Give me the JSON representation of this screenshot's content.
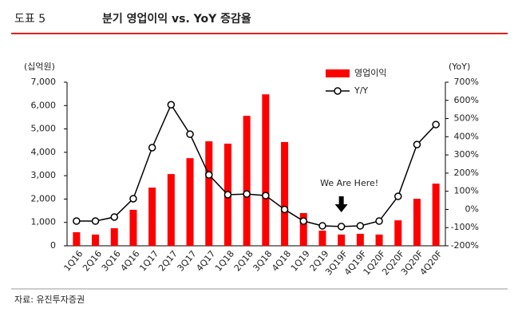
{
  "chart_data": {
    "type": "bar",
    "figure_number": "도표 5",
    "title": "분기 영업이익 vs. YoY 증감율",
    "source": "자료: 유진투자증권",
    "y_label": "(십억원)",
    "y2_label": "(YoY)",
    "categories": [
      "1Q16",
      "2Q16",
      "3Q16",
      "4Q16",
      "1Q17",
      "2Q17",
      "3Q17",
      "4Q17",
      "1Q18",
      "2Q18",
      "3Q18",
      "4Q18",
      "1Q19",
      "2Q19",
      "3Q19F",
      "4Q19F",
      "1Q20F",
      "2Q20F",
      "3Q20F",
      "4Q20F"
    ],
    "series": [
      {
        "name": "영업이익",
        "type": "bar",
        "color": "#ff0000",
        "values": [
          580,
          480,
          750,
          1540,
          2490,
          3070,
          3750,
          4470,
          4370,
          5560,
          6480,
          4440,
          1400,
          650,
          480,
          510,
          480,
          1090,
          2010,
          2660
        ]
      },
      {
        "name": "Y/Y",
        "type": "line",
        "axis": "y2",
        "color": "#000000",
        "values": [
          -64,
          -64,
          -42,
          59,
          340,
          576,
          414,
          190,
          81,
          85,
          76,
          0,
          -64,
          -90,
          -94,
          -90,
          -64,
          72,
          357,
          467
        ]
      }
    ],
    "ylim": [
      0,
      7000
    ],
    "yticks": [
      0,
      {
        "value": 1000,
        "label": "1,000"
      },
      {
        "value": 2000,
        "label": "2,000"
      },
      {
        "value": 3000,
        "label": "3,000"
      },
      {
        "value": 4000,
        "label": "4,000"
      },
      {
        "value": 5000,
        "label": "5,000"
      },
      {
        "value": 6000,
        "label": "6,000"
      },
      {
        "value": 7000,
        "label": "7,000"
      }
    ],
    "y2lim": [
      -200,
      700
    ],
    "y2ticks": [
      {
        "value": -200,
        "label": "-200%"
      },
      {
        "value": -100,
        "label": "-100%"
      },
      {
        "value": 0,
        "label": "0%"
      },
      {
        "value": 100,
        "label": "100%"
      },
      {
        "value": 200,
        "label": "200%"
      },
      {
        "value": 300,
        "label": "300%"
      },
      {
        "value": 400,
        "label": "400%"
      },
      {
        "value": 500,
        "label": "500%"
      },
      {
        "value": 600,
        "label": "600%"
      },
      {
        "value": 700,
        "label": "700%"
      }
    ],
    "legend": "upper right",
    "annotations": [
      {
        "text": "We Are Here!",
        "x": "3Q19F"
      }
    ]
  }
}
